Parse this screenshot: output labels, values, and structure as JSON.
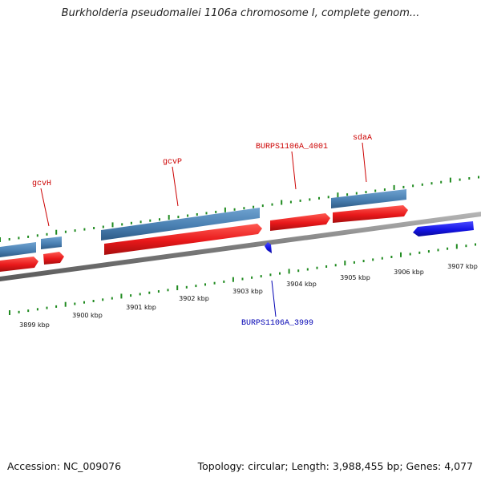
{
  "title": "Burkholderia pseudomallei 1106a chromosome I, complete genom...",
  "footer": {
    "accession": "Accession: NC_009076",
    "summary": "Topology: circular; Length: 3,988,455 bp; Genes: 4,077"
  },
  "colors": {
    "gene_forward": "#e8181a",
    "cds_forward": "#4a80b2",
    "gene_reverse": "#1414e6",
    "backbone": "#8a8a8a",
    "ticks": "#1f8a1f",
    "label_forward": "#cc0000",
    "label_reverse": "#0000b3"
  },
  "ruler_labels": [
    "3899 kbp",
    "3900 kbp",
    "3901 kbp",
    "3902 kbp",
    "3903 kbp",
    "3904 kbp",
    "3905 kbp",
    "3906 kbp",
    "3907 kbp"
  ],
  "gene_labels": [
    {
      "text": "gcvH",
      "strand": "forward"
    },
    {
      "text": "gcvP",
      "strand": "forward"
    },
    {
      "text": "BURPS1106A_4001",
      "strand": "forward"
    },
    {
      "text": "sdaA",
      "strand": "forward"
    },
    {
      "text": "BURPS1106A_3999",
      "strand": "reverse"
    }
  ]
}
